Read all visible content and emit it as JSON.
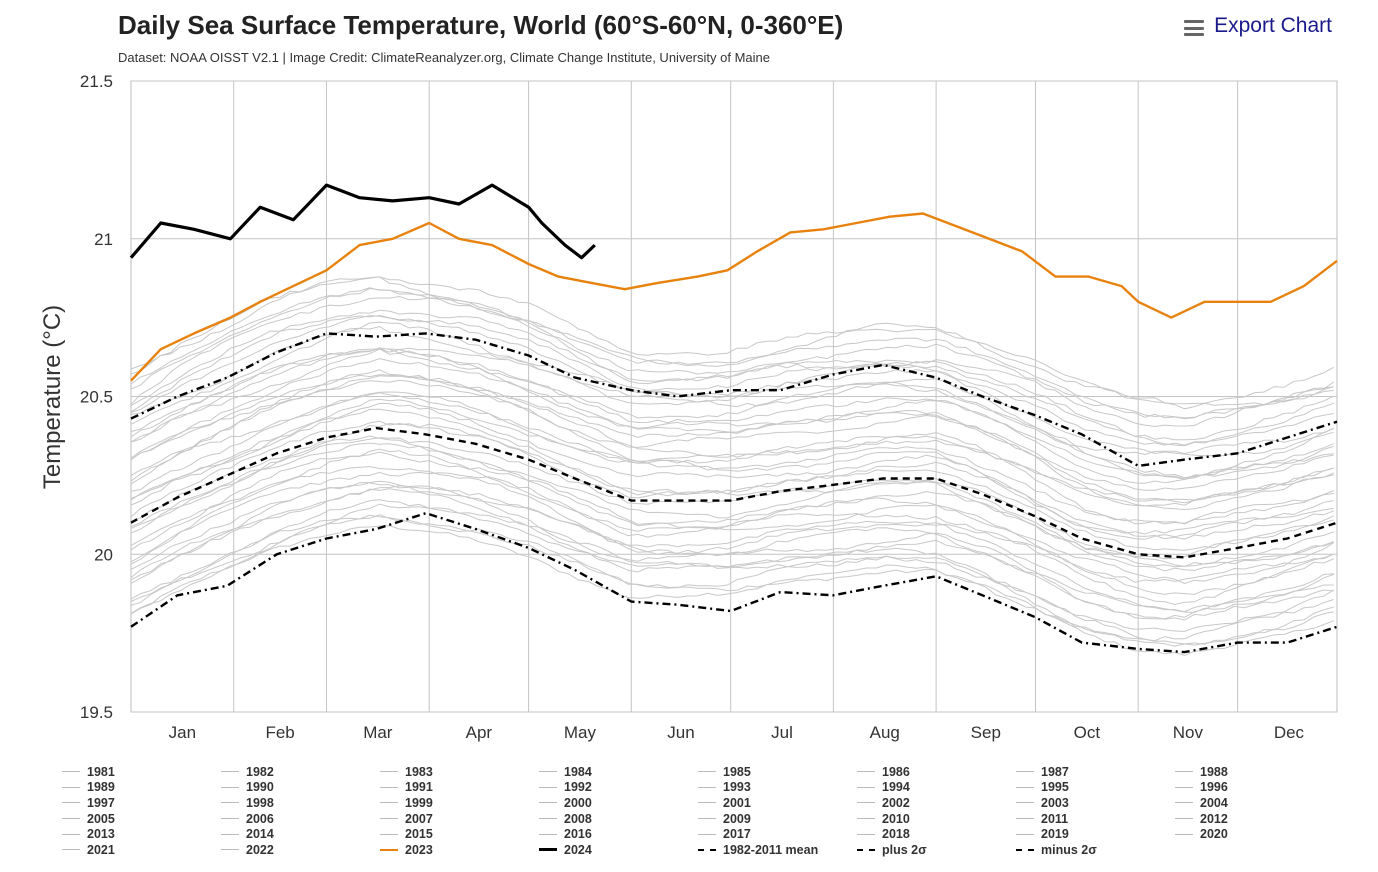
{
  "header": {
    "title": "Daily Sea Surface Temperature, World (60°S-60°N, 0-360°E)",
    "subtitle": "Dataset: NOAA OISST V2.1 | Image Credit: ClimateReanalyzer.org, Climate Change Institute, University of Maine",
    "export_label": "Export Chart"
  },
  "chart_data": {
    "type": "line",
    "title": "Daily Sea Surface Temperature, World (60°S-60°N, 0-360°E)",
    "ylabel": "Temperature (°C)",
    "xlabel": "",
    "ylim": [
      19.5,
      21.5
    ],
    "yticks": [
      "19.5",
      "20",
      "20.5",
      "21",
      "21.5"
    ],
    "ytick_values": [
      19.5,
      20,
      20.5,
      21,
      21.5
    ],
    "months": [
      "Jan",
      "Feb",
      "Mar",
      "Apr",
      "May",
      "Jun",
      "Jul",
      "Aug",
      "Sep",
      "Oct",
      "Nov",
      "Dec"
    ],
    "grid": true,
    "legend_position": "bottom",
    "series": [
      {
        "name": "2024",
        "color": "#000000",
        "style": "solid-bold",
        "x": [
          1,
          10,
          20,
          31,
          40,
          50,
          60,
          70,
          80,
          91,
          100,
          110,
          121,
          125,
          132,
          137,
          141
        ],
        "y": [
          20.94,
          21.05,
          21.03,
          21.0,
          21.1,
          21.06,
          21.17,
          21.13,
          21.12,
          21.13,
          21.11,
          21.17,
          21.1,
          21.05,
          20.98,
          20.94,
          20.98
        ]
      },
      {
        "name": "2023",
        "color": "#e8820e",
        "style": "solid",
        "x": [
          1,
          10,
          20,
          31,
          40,
          50,
          60,
          70,
          80,
          91,
          100,
          110,
          121,
          130,
          140,
          150,
          160,
          172,
          181,
          190,
          200,
          210,
          220,
          230,
          240,
          250,
          260,
          270,
          280,
          290,
          300,
          305,
          315,
          325,
          335,
          345,
          355,
          365
        ],
        "y": [
          20.55,
          20.65,
          20.7,
          20.75,
          20.8,
          20.85,
          20.9,
          20.98,
          21.0,
          21.05,
          21.0,
          20.98,
          20.92,
          20.88,
          20.86,
          20.84,
          20.86,
          20.88,
          20.9,
          20.96,
          21.02,
          21.03,
          21.05,
          21.07,
          21.08,
          21.04,
          21.0,
          20.96,
          20.88,
          20.88,
          20.85,
          20.8,
          20.75,
          20.8,
          20.8,
          20.8,
          20.85,
          20.93
        ]
      },
      {
        "name": "1982-2011 mean",
        "color": "#000000",
        "style": "dashed",
        "x": [
          1,
          15,
          30,
          45,
          60,
          75,
          90,
          105,
          121,
          135,
          152,
          166,
          182,
          197,
          213,
          228,
          244,
          258,
          274,
          288,
          305,
          319,
          335,
          350,
          365
        ],
        "y": [
          20.1,
          20.18,
          20.25,
          20.32,
          20.37,
          20.4,
          20.38,
          20.35,
          20.3,
          20.24,
          20.17,
          20.17,
          20.17,
          20.2,
          20.22,
          20.24,
          20.24,
          20.19,
          20.12,
          20.05,
          20.0,
          19.99,
          20.02,
          20.05,
          20.1
        ]
      },
      {
        "name": "plus 2σ",
        "color": "#000000",
        "style": "dash-dot",
        "x": [
          1,
          15,
          30,
          45,
          60,
          75,
          90,
          105,
          121,
          135,
          152,
          166,
          182,
          197,
          213,
          228,
          244,
          258,
          274,
          288,
          305,
          319,
          335,
          350,
          365
        ],
        "y": [
          20.43,
          20.5,
          20.56,
          20.64,
          20.7,
          20.69,
          20.7,
          20.68,
          20.63,
          20.56,
          20.52,
          20.5,
          20.52,
          20.52,
          20.57,
          20.6,
          20.56,
          20.5,
          20.44,
          20.38,
          20.28,
          20.3,
          20.32,
          20.37,
          20.42
        ]
      },
      {
        "name": "minus 2σ",
        "color": "#000000",
        "style": "dash-dot",
        "x": [
          1,
          15,
          30,
          45,
          60,
          75,
          90,
          105,
          121,
          135,
          152,
          166,
          182,
          197,
          213,
          228,
          244,
          258,
          274,
          288,
          305,
          319,
          335,
          350,
          365
        ],
        "y": [
          19.77,
          19.87,
          19.9,
          20.0,
          20.05,
          20.08,
          20.13,
          20.08,
          20.02,
          19.95,
          19.85,
          19.84,
          19.82,
          19.88,
          19.87,
          19.9,
          19.93,
          19.87,
          19.8,
          19.72,
          19.7,
          19.69,
          19.72,
          19.72,
          19.77
        ]
      }
    ],
    "background_years": [
      "1981",
      "1982",
      "1983",
      "1984",
      "1985",
      "1986",
      "1987",
      "1988",
      "1989",
      "1990",
      "1991",
      "1992",
      "1993",
      "1994",
      "1995",
      "1996",
      "1997",
      "1998",
      "1999",
      "2000",
      "2001",
      "2002",
      "2003",
      "2004",
      "2005",
      "2006",
      "2007",
      "2008",
      "2009",
      "2010",
      "2011",
      "2012",
      "2013",
      "2014",
      "2015",
      "2016",
      "2017",
      "2018",
      "2019",
      "2020",
      "2021",
      "2022"
    ],
    "background_color": "#c8c8c8"
  },
  "legend": [
    {
      "label": "1981",
      "style": "thin",
      "color": "#bbbbbb"
    },
    {
      "label": "1982",
      "style": "thin",
      "color": "#bbbbbb"
    },
    {
      "label": "1983",
      "style": "thin",
      "color": "#bbbbbb"
    },
    {
      "label": "1984",
      "style": "thin",
      "color": "#bbbbbb"
    },
    {
      "label": "1985",
      "style": "thin",
      "color": "#bbbbbb"
    },
    {
      "label": "1986",
      "style": "thin",
      "color": "#bbbbbb"
    },
    {
      "label": "1987",
      "style": "thin",
      "color": "#bbbbbb"
    },
    {
      "label": "1988",
      "style": "thin",
      "color": "#bbbbbb"
    },
    {
      "label": "1989",
      "style": "thin",
      "color": "#bbbbbb"
    },
    {
      "label": "1990",
      "style": "thin",
      "color": "#bbbbbb"
    },
    {
      "label": "1991",
      "style": "thin",
      "color": "#bbbbbb"
    },
    {
      "label": "1992",
      "style": "thin",
      "color": "#bbbbbb"
    },
    {
      "label": "1993",
      "style": "thin",
      "color": "#bbbbbb"
    },
    {
      "label": "1994",
      "style": "thin",
      "color": "#bbbbbb"
    },
    {
      "label": "1995",
      "style": "thin",
      "color": "#bbbbbb"
    },
    {
      "label": "1996",
      "style": "thin",
      "color": "#bbbbbb"
    },
    {
      "label": "1997",
      "style": "thin",
      "color": "#bbbbbb"
    },
    {
      "label": "1998",
      "style": "thin",
      "color": "#bbbbbb"
    },
    {
      "label": "1999",
      "style": "thin",
      "color": "#bbbbbb"
    },
    {
      "label": "2000",
      "style": "thin",
      "color": "#bbbbbb"
    },
    {
      "label": "2001",
      "style": "thin",
      "color": "#bbbbbb"
    },
    {
      "label": "2002",
      "style": "thin",
      "color": "#bbbbbb"
    },
    {
      "label": "2003",
      "style": "thin",
      "color": "#bbbbbb"
    },
    {
      "label": "2004",
      "style": "thin",
      "color": "#bbbbbb"
    },
    {
      "label": "2005",
      "style": "thin",
      "color": "#bbbbbb"
    },
    {
      "label": "2006",
      "style": "thin",
      "color": "#bbbbbb"
    },
    {
      "label": "2007",
      "style": "thin",
      "color": "#bbbbbb"
    },
    {
      "label": "2008",
      "style": "thin",
      "color": "#bbbbbb"
    },
    {
      "label": "2009",
      "style": "thin",
      "color": "#bbbbbb"
    },
    {
      "label": "2010",
      "style": "thin",
      "color": "#bbbbbb"
    },
    {
      "label": "2011",
      "style": "thin",
      "color": "#bbbbbb"
    },
    {
      "label": "2012",
      "style": "thin",
      "color": "#bbbbbb"
    },
    {
      "label": "2013",
      "style": "thin",
      "color": "#bbbbbb"
    },
    {
      "label": "2014",
      "style": "thin",
      "color": "#bbbbbb"
    },
    {
      "label": "2015",
      "style": "thin",
      "color": "#bbbbbb"
    },
    {
      "label": "2016",
      "style": "thin",
      "color": "#bbbbbb"
    },
    {
      "label": "2017",
      "style": "thin",
      "color": "#bbbbbb"
    },
    {
      "label": "2018",
      "style": "thin",
      "color": "#bbbbbb"
    },
    {
      "label": "2019",
      "style": "thin",
      "color": "#bbbbbb"
    },
    {
      "label": "2020",
      "style": "thin",
      "color": "#bbbbbb"
    },
    {
      "label": "2021",
      "style": "thin",
      "color": "#bbbbbb"
    },
    {
      "label": "2022",
      "style": "thin",
      "color": "#bbbbbb"
    },
    {
      "label": "2023",
      "style": "solid",
      "color": "#e8820e"
    },
    {
      "label": "2024",
      "style": "bold",
      "color": "#000000"
    },
    {
      "label": "1982-2011 mean",
      "style": "dashed",
      "color": "#000000"
    },
    {
      "label": "plus 2σ",
      "style": "dashdot",
      "color": "#000000"
    },
    {
      "label": "minus 2σ",
      "style": "dashdot",
      "color": "#000000"
    }
  ]
}
